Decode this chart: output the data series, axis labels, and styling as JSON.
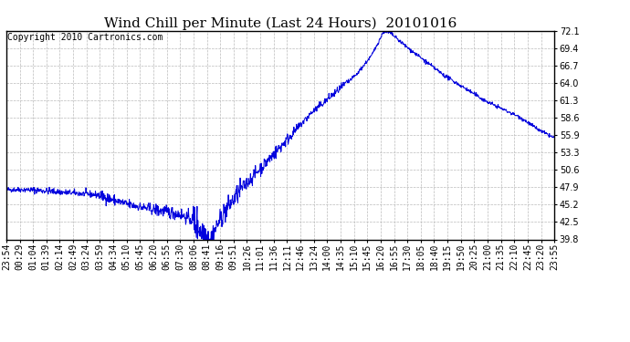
{
  "title": "Wind Chill per Minute (Last 24 Hours)  20101016",
  "copyright_text": "Copyright 2010 Cartronics.com",
  "line_color": "#0000dd",
  "background_color": "#ffffff",
  "grid_color": "#bbbbbb",
  "ylim": [
    39.8,
    72.1
  ],
  "yticks": [
    39.8,
    42.5,
    45.2,
    47.9,
    50.6,
    53.3,
    55.9,
    58.6,
    61.3,
    64.0,
    66.7,
    69.4,
    72.1
  ],
  "x_labels": [
    "23:54",
    "00:29",
    "01:04",
    "01:39",
    "02:14",
    "02:49",
    "03:24",
    "03:59",
    "04:34",
    "05:10",
    "05:45",
    "06:20",
    "06:55",
    "07:30",
    "08:06",
    "08:41",
    "09:16",
    "09:51",
    "10:26",
    "11:01",
    "11:36",
    "12:11",
    "12:46",
    "13:24",
    "14:00",
    "14:35",
    "15:10",
    "15:45",
    "16:20",
    "16:55",
    "17:30",
    "18:05",
    "18:40",
    "19:15",
    "19:50",
    "20:25",
    "21:00",
    "21:35",
    "22:10",
    "22:45",
    "23:20",
    "23:55"
  ],
  "title_fontsize": 11,
  "copyright_fontsize": 7,
  "tick_fontsize": 7
}
